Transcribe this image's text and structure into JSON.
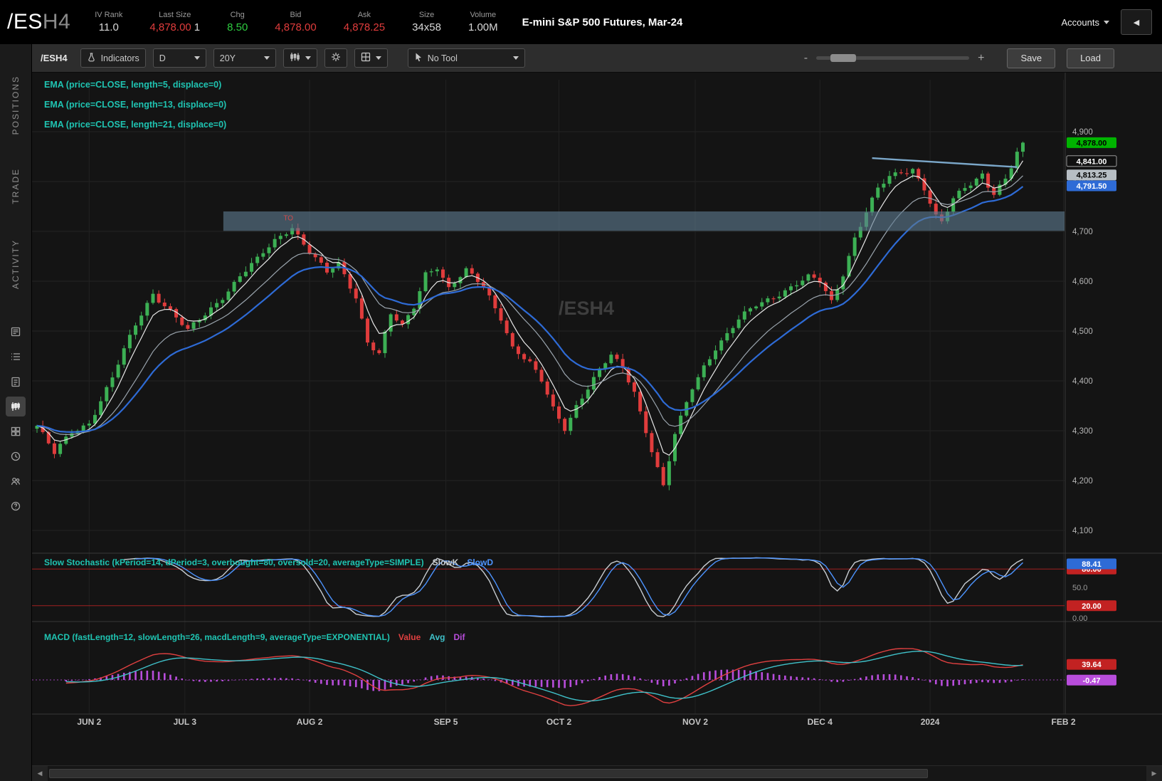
{
  "header": {
    "symbol": "/ES",
    "contract": "H4",
    "description": "E-mini S&P 500 Futures, Mar-24",
    "accounts_label": "Accounts",
    "fields": [
      {
        "label": "IV Rank",
        "value": "11.0",
        "color": "#d8d8d8"
      },
      {
        "label": "Last Size",
        "value": "4,878.00",
        "suffix": "1",
        "color": "#e03c3c"
      },
      {
        "label": "Chg",
        "value": "8.50",
        "color": "#2ecc40"
      },
      {
        "label": "Bid",
        "value": "4,878.00",
        "color": "#e03c3c"
      },
      {
        "label": "Ask",
        "value": "4,878.25",
        "color": "#e03c3c"
      },
      {
        "label": "Size",
        "value": "34x58",
        "color": "#d8d8d8"
      },
      {
        "label": "Volume",
        "value": "1.00M",
        "color": "#d8d8d8"
      }
    ]
  },
  "sidebar": {
    "tabs": [
      {
        "label": "POSITIONS"
      },
      {
        "label": "TRADE"
      },
      {
        "label": "ACTIVITY"
      }
    ],
    "icons": [
      "news-icon",
      "list-icon",
      "order-ticket-icon",
      "chart-icon",
      "grid-icon",
      "history-icon",
      "community-icon",
      "help-icon"
    ]
  },
  "toolbar": {
    "symbol": "/ESH4",
    "indicators": "Indicators",
    "aggregation": "D",
    "range": "20Y",
    "tool": "No Tool",
    "zoom_minus": "-",
    "zoom_plus": "+",
    "save": "Save",
    "load": "Load"
  },
  "chart": {
    "watermark": "/ESH4",
    "legend_color": "#1fc4b2",
    "legend": [
      "EMA (price=CLOSE, length=5, displace=0)",
      "EMA (price=CLOSE, length=13, displace=0)",
      "EMA (price=CLOSE, length=21, displace=0)"
    ],
    "price_axis": {
      "ticks": [
        "4,900",
        "4,800",
        "4,700",
        "4,600",
        "4,500",
        "4,400",
        "4,300",
        "4,200",
        "4,100"
      ],
      "tick_values": [
        4900,
        4800,
        4700,
        4600,
        4500,
        4400,
        4300,
        4200,
        4100
      ],
      "bubbles": [
        {
          "text": "4,878.00",
          "value": 4878.0,
          "bg": "#00b300",
          "fg": "#000000"
        },
        {
          "text": "4,841.00",
          "value": 4841.0,
          "bg": "#101010",
          "fg": "#ffffff",
          "border": "#999999"
        },
        {
          "text": "4,813.25",
          "value": 4813.25,
          "bg": "#b7bec4",
          "fg": "#000000"
        },
        {
          "text": "4,791.50",
          "value": 4791.5,
          "bg": "#2e6bd6",
          "fg": "#ffffff"
        }
      ]
    },
    "annotation": {
      "text": "TO",
      "index": 42.5,
      "price": 4722,
      "color": "#d14b4b"
    }
  },
  "stochastic": {
    "label": "Slow Stochastic (kPeriod=14, dPeriod=3, overbought=80, oversold=20, averageType=SIMPLE)",
    "label_color": "#1fc4b2",
    "series": [
      {
        "name": "SlowK",
        "color": "#c8cdd2"
      },
      {
        "name": "SlowD",
        "color": "#4d94ff"
      }
    ],
    "overbought": 80,
    "oversold": 20,
    "axis": {
      "mid_label": "50.0",
      "zero_label": "0.00"
    },
    "bubbles": [
      {
        "text": "80.00",
        "value": 80,
        "bg": "#c22222",
        "fg": "#ffffff"
      },
      {
        "text": "20.00",
        "value": 20,
        "bg": "#c22222",
        "fg": "#ffffff"
      },
      {
        "text": "88.41",
        "value": 88.41,
        "bg": "#2e6bd6",
        "fg": "#ffffff"
      }
    ]
  },
  "macd": {
    "label": "MACD (fastLength=12, slowLength=26, macdLength=9, averageType=EXPONENTIAL)",
    "label_color": "#1fc4b2",
    "series": [
      {
        "name": "Value",
        "color": "#e04040"
      },
      {
        "name": "Avg",
        "color": "#3fc1c9"
      },
      {
        "name": "Dif",
        "color": "#b84ddb"
      }
    ],
    "bubbles": [
      {
        "text": "39.64",
        "value": 39.64,
        "bg": "#c22222",
        "fg": "#ffffff"
      },
      {
        "text": "-0.47",
        "value": -0.47,
        "bg": "#b84ddb",
        "fg": "#ffffff"
      }
    ]
  },
  "chart_data": {
    "type": "candlestick",
    "symbol": "/ESH4",
    "timeframe": "D",
    "last_price": 4878.0,
    "up_color": "#3cb054",
    "down_color": "#e03c3c",
    "candle_count": 171,
    "y_range": [
      4057,
      5010
    ],
    "x_ticks": [
      {
        "index": 9,
        "label": "JUN 2"
      },
      {
        "index": 25.5,
        "label": "JUL 3"
      },
      {
        "index": 47,
        "label": "AUG 2"
      },
      {
        "index": 70.5,
        "label": "SEP 5"
      },
      {
        "index": 90,
        "label": "OCT 2"
      },
      {
        "index": 113.5,
        "label": "NOV 2"
      },
      {
        "index": 135,
        "label": "DEC 4"
      },
      {
        "index": 154,
        "label": "2024"
      },
      {
        "index": 177,
        "label": "FEB 2"
      }
    ],
    "price_waypoints": [
      [
        0,
        4310
      ],
      [
        3,
        4252
      ],
      [
        6,
        4298
      ],
      [
        9,
        4318
      ],
      [
        13,
        4405
      ],
      [
        17,
        4512
      ],
      [
        20,
        4578
      ],
      [
        23,
        4542
      ],
      [
        26,
        4498
      ],
      [
        29,
        4532
      ],
      [
        32,
        4571
      ],
      [
        35,
        4612
      ],
      [
        38,
        4641
      ],
      [
        41,
        4680
      ],
      [
        44,
        4712
      ],
      [
        47,
        4660
      ],
      [
        50,
        4615
      ],
      [
        52,
        4632
      ],
      [
        55,
        4570
      ],
      [
        57,
        4482
      ],
      [
        59,
        4455
      ],
      [
        61,
        4532
      ],
      [
        63,
        4506
      ],
      [
        65,
        4548
      ],
      [
        67,
        4618
      ],
      [
        69,
        4632
      ],
      [
        71,
        4585
      ],
      [
        74,
        4618
      ],
      [
        77,
        4590
      ],
      [
        80,
        4530
      ],
      [
        82,
        4468
      ],
      [
        85,
        4432
      ],
      [
        87,
        4398
      ],
      [
        89,
        4345
      ],
      [
        91,
        4308
      ],
      [
        93,
        4352
      ],
      [
        96,
        4402
      ],
      [
        99,
        4450
      ],
      [
        101,
        4426
      ],
      [
        103,
        4382
      ],
      [
        104,
        4340
      ],
      [
        106,
        4262
      ],
      [
        108,
        4185
      ],
      [
        110,
        4290
      ],
      [
        113,
        4388
      ],
      [
        115,
        4432
      ],
      [
        117,
        4468
      ],
      [
        119,
        4492
      ],
      [
        121,
        4520
      ],
      [
        124,
        4552
      ],
      [
        127,
        4572
      ],
      [
        130,
        4588
      ],
      [
        133,
        4605
      ],
      [
        135,
        4598
      ],
      [
        137,
        4560
      ],
      [
        139,
        4618
      ],
      [
        141,
        4688
      ],
      [
        143,
        4738
      ],
      [
        145,
        4782
      ],
      [
        147,
        4808
      ],
      [
        149,
        4820
      ],
      [
        151,
        4828
      ],
      [
        153,
        4788
      ],
      [
        155,
        4728
      ],
      [
        156,
        4715
      ],
      [
        158,
        4762
      ],
      [
        160,
        4788
      ],
      [
        162,
        4808
      ],
      [
        163,
        4818
      ],
      [
        164,
        4795
      ],
      [
        165,
        4778
      ],
      [
        167,
        4802
      ],
      [
        168,
        4826
      ],
      [
        169,
        4855
      ],
      [
        170,
        4878
      ]
    ],
    "overlays": [
      {
        "type": "ema",
        "length": 5,
        "color": "#e8e8e8"
      },
      {
        "type": "ema",
        "length": 13,
        "color": "#9aa4ad"
      },
      {
        "type": "ema",
        "length": 21,
        "color": "#2e6bd6"
      }
    ],
    "resistance_zone": {
      "from_index": 32.5,
      "price_top": 4740,
      "price_bottom": 4701,
      "color": "#5d7b8f",
      "opacity": 0.62
    },
    "trendline": {
      "from_index": 144,
      "from_price": 4847,
      "to_index": 169,
      "to_price": 4829,
      "color": "#7ba7c9"
    }
  }
}
